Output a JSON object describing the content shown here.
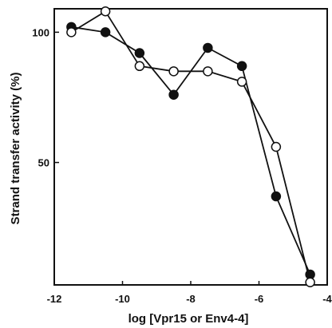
{
  "chart_data": {
    "type": "line",
    "title": "",
    "xlabel": "log [Vpr15 or Env4-4]",
    "ylabel": "Strand transfer activity (%)",
    "xlim": [
      -12,
      -4
    ],
    "ylim": [
      3,
      109
    ],
    "x_ticks": [
      -12,
      -10,
      -8,
      -6,
      -4
    ],
    "x_tick_labels": [
      "-12",
      "-10",
      "-8",
      "-6",
      "-4"
    ],
    "y_ticks": [
      50,
      100
    ],
    "y_tick_labels": [
      "50",
      "100"
    ],
    "grid": false,
    "legend": "none",
    "series": [
      {
        "marker": "filled-circle",
        "color": "#111111",
        "x": [
          -11.5,
          -10.5,
          -9.5,
          -8.5,
          -7.5,
          -6.5,
          -5.5,
          -4.5
        ],
        "y": [
          102,
          100,
          92,
          76,
          94,
          87,
          37,
          7
        ]
      },
      {
        "marker": "open-circle",
        "color": "#111111",
        "x": [
          -11.5,
          -10.5,
          -9.5,
          -8.5,
          -7.5,
          -6.5,
          -5.5,
          -4.5
        ],
        "y": [
          100,
          108,
          87,
          85,
          85,
          81,
          56,
          4
        ]
      }
    ]
  }
}
